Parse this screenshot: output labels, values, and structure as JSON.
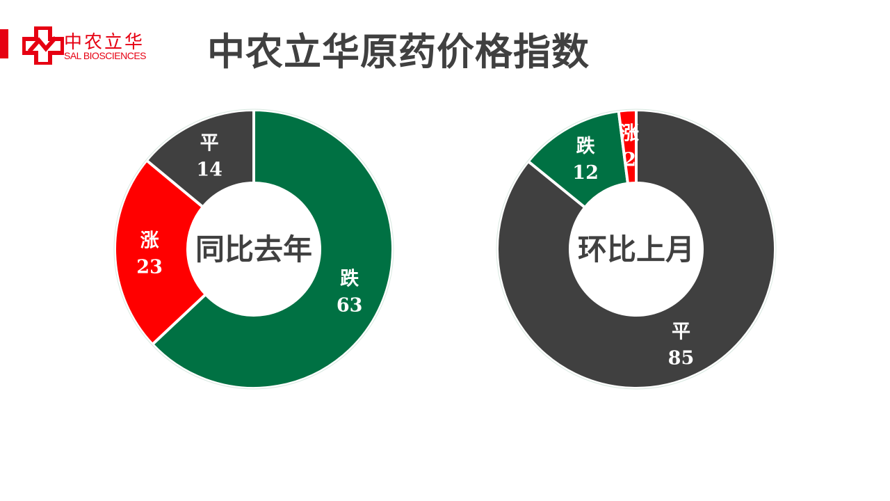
{
  "header": {
    "logo_cn": "中农立华",
    "logo_en": "SAL BIOSCIENCES",
    "title": "中农立华原药价格指数"
  },
  "colors": {
    "brand_red": "#e60012",
    "涨": "#ff0000",
    "跌": "#007143",
    "平": "#404040"
  },
  "chart_data": [
    {
      "type": "pie",
      "subtype": "donut",
      "center_label": "同比去年",
      "slices": [
        {
          "label": "跌",
          "value": 63
        },
        {
          "label": "涨",
          "value": 23
        },
        {
          "label": "平",
          "value": 14
        }
      ]
    },
    {
      "type": "pie",
      "subtype": "donut",
      "center_label": "环比上月",
      "slices": [
        {
          "label": "平",
          "value": 85
        },
        {
          "label": "跌",
          "value": 12
        },
        {
          "label": "涨",
          "value": 2
        }
      ]
    }
  ]
}
